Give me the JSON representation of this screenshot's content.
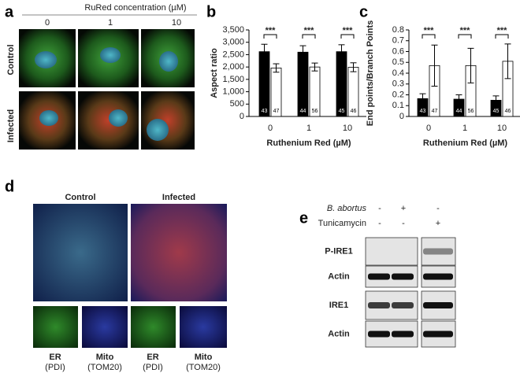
{
  "panel_labels": [
    "a",
    "b",
    "c",
    "d",
    "e"
  ],
  "panel_a": {
    "title": "RuRed concentration (µM)",
    "columns": [
      "0",
      "1",
      "10"
    ],
    "rows": [
      "Control",
      "Infected"
    ]
  },
  "chart_data": [
    {
      "type": "bar",
      "ylabel": "Aspect ratio",
      "xlabel": "Ruthenium Red (µM)",
      "categories": [
        "0",
        "1",
        "10"
      ],
      "series": [
        {
          "color": "#000000",
          "values": [
            2620,
            2600,
            2620
          ],
          "errors": [
            300,
            260,
            280
          ],
          "n_labels": [
            43,
            44,
            45
          ]
        },
        {
          "color": "#ffffff",
          "values": [
            1960,
            2000,
            1990
          ],
          "errors": [
            170,
            160,
            180
          ],
          "n_labels": [
            47,
            56,
            46
          ]
        }
      ],
      "significance": [
        "***",
        "***",
        "***"
      ],
      "ylim": [
        0,
        3500
      ],
      "yticks": [
        0,
        500,
        {
          "value": 1000,
          "label": "1,000"
        },
        {
          "value": 1500,
          "label": "1,500"
        },
        {
          "value": 2000,
          "label": "2,000"
        },
        {
          "value": 2500,
          "label": "2,500"
        },
        {
          "value": 3000,
          "label": "3,000"
        },
        {
          "value": 3500,
          "label": "3,500"
        }
      ]
    },
    {
      "type": "bar",
      "ylabel": "End points/Branch Points",
      "xlabel": "Ruthenium Red (µM)",
      "categories": [
        "0",
        "1",
        "10"
      ],
      "series": [
        {
          "color": "#000000",
          "values": [
            0.165,
            0.16,
            0.15
          ],
          "errors": [
            0.045,
            0.04,
            0.04
          ],
          "n_labels": [
            43,
            44,
            45
          ]
        },
        {
          "color": "#ffffff",
          "values": [
            0.47,
            0.47,
            0.51
          ],
          "errors": [
            0.19,
            0.16,
            0.16
          ],
          "n_labels": [
            47,
            56,
            46
          ]
        }
      ],
      "significance": [
        "***",
        "***",
        "***"
      ],
      "ylim": [
        0,
        0.8
      ],
      "yticks": [
        0,
        0.1,
        0.2,
        0.3,
        0.4,
        0.5,
        0.6,
        0.7,
        0.8
      ]
    }
  ],
  "panel_d": {
    "columns": [
      "Control",
      "Infected"
    ],
    "channels": [
      {
        "name": "ER",
        "marker": "(PDI)"
      },
      {
        "name": "Mito",
        "marker": "(TOM20)"
      },
      {
        "name": "ER",
        "marker": "(PDI)"
      },
      {
        "name": "Mito",
        "marker": "(TOM20)"
      }
    ]
  },
  "panel_e": {
    "conditions": [
      {
        "label": "B. abortus",
        "signs": [
          "-",
          "+",
          "-"
        ]
      },
      {
        "label": "Tunicamycin",
        "signs": [
          "-",
          "-",
          "+"
        ]
      }
    ],
    "blots": [
      "P-IRE1",
      "Actin",
      "IRE1",
      "Actin"
    ]
  }
}
